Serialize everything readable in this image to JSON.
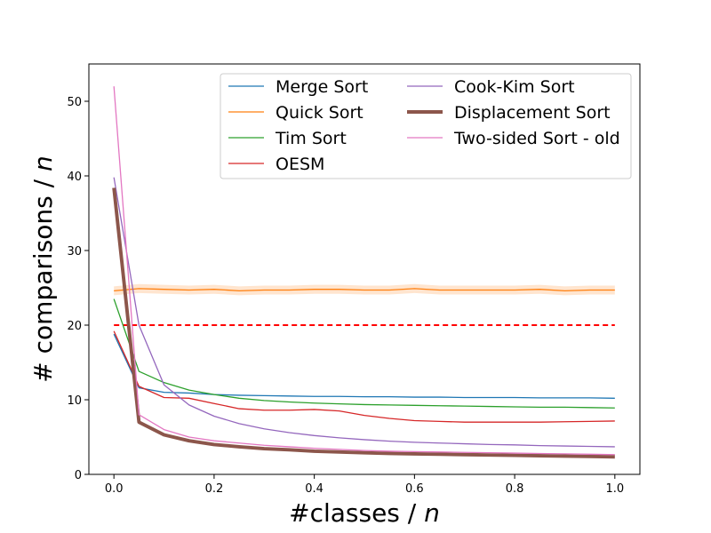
{
  "chart_data": {
    "type": "line",
    "xlabel": "#classes / ",
    "xlabel_var": "n",
    "ylabel": "# comparisons / ",
    "ylabel_var": "n",
    "xlim": [
      -0.05,
      1.05
    ],
    "ylim": [
      0,
      55
    ],
    "xticks": [
      0.0,
      0.2,
      0.4,
      0.6,
      0.8,
      1.0
    ],
    "xtick_labels": [
      "0.0",
      "0.2",
      "0.4",
      "0.6",
      "0.8",
      "1.0"
    ],
    "yticks": [
      0,
      10,
      20,
      30,
      40,
      50
    ],
    "ytick_labels": [
      "0",
      "10",
      "20",
      "30",
      "40",
      "50"
    ],
    "grid": false,
    "legend_position": "top-right",
    "legend_columns": 2,
    "x": [
      0.0,
      0.05,
      0.1,
      0.15,
      0.2,
      0.25,
      0.3,
      0.35,
      0.4,
      0.45,
      0.5,
      0.55,
      0.6,
      0.65,
      0.7,
      0.75,
      0.8,
      0.85,
      0.9,
      0.95,
      1.0
    ],
    "series": [
      {
        "name": "Merge Sort",
        "color": "#1f77b4",
        "width": 1,
        "values": [
          18.8,
          11.6,
          11.0,
          10.9,
          10.7,
          10.6,
          10.55,
          10.5,
          10.45,
          10.45,
          10.4,
          10.4,
          10.35,
          10.35,
          10.3,
          10.3,
          10.3,
          10.25,
          10.25,
          10.25,
          10.2
        ]
      },
      {
        "name": "Quick Sort",
        "color": "#ff7f0e",
        "width": 1,
        "band": 0.6,
        "values": [
          24.6,
          24.9,
          24.8,
          24.7,
          24.8,
          24.6,
          24.7,
          24.7,
          24.8,
          24.8,
          24.7,
          24.7,
          24.9,
          24.7,
          24.7,
          24.7,
          24.7,
          24.8,
          24.6,
          24.7,
          24.7
        ]
      },
      {
        "name": "Tim Sort",
        "color": "#2ca02c",
        "width": 1,
        "values": [
          23.5,
          13.8,
          12.3,
          11.3,
          10.7,
          10.2,
          9.9,
          9.7,
          9.55,
          9.45,
          9.35,
          9.3,
          9.25,
          9.2,
          9.15,
          9.1,
          9.05,
          9.0,
          9.0,
          8.95,
          8.9
        ]
      },
      {
        "name": "OESM",
        "color": "#d62728",
        "width": 1,
        "values": [
          19.2,
          11.8,
          10.3,
          10.2,
          9.5,
          8.8,
          8.6,
          8.6,
          8.7,
          8.5,
          7.9,
          7.5,
          7.2,
          7.1,
          7.0,
          7.0,
          7.0,
          7.0,
          7.05,
          7.1,
          7.15
        ]
      },
      {
        "name": "Cook-Kim Sort",
        "color": "#9467bd",
        "width": 1,
        "values": [
          39.8,
          20.0,
          12.0,
          9.3,
          7.8,
          6.8,
          6.1,
          5.6,
          5.2,
          4.9,
          4.65,
          4.45,
          4.3,
          4.2,
          4.1,
          4.0,
          3.95,
          3.85,
          3.8,
          3.75,
          3.7
        ]
      },
      {
        "name": "Displacement Sort",
        "color": "#8c564b",
        "width": 3,
        "values": [
          38.4,
          7.0,
          5.3,
          4.5,
          4.0,
          3.7,
          3.45,
          3.3,
          3.1,
          3.0,
          2.9,
          2.8,
          2.75,
          2.7,
          2.65,
          2.6,
          2.55,
          2.5,
          2.45,
          2.4,
          2.35
        ]
      },
      {
        "name": "Two-sided Sort - old",
        "color": "#e377c2",
        "width": 1,
        "values": [
          52.0,
          8.0,
          6.0,
          5.0,
          4.5,
          4.2,
          3.9,
          3.7,
          3.5,
          3.35,
          3.2,
          3.1,
          3.05,
          3.0,
          2.95,
          2.9,
          2.85,
          2.8,
          2.75,
          2.7,
          2.65
        ]
      }
    ],
    "reference_line": {
      "y": 20,
      "x_range": [
        0.0,
        1.0
      ],
      "color": "#ff0000",
      "style": "dashed"
    }
  }
}
